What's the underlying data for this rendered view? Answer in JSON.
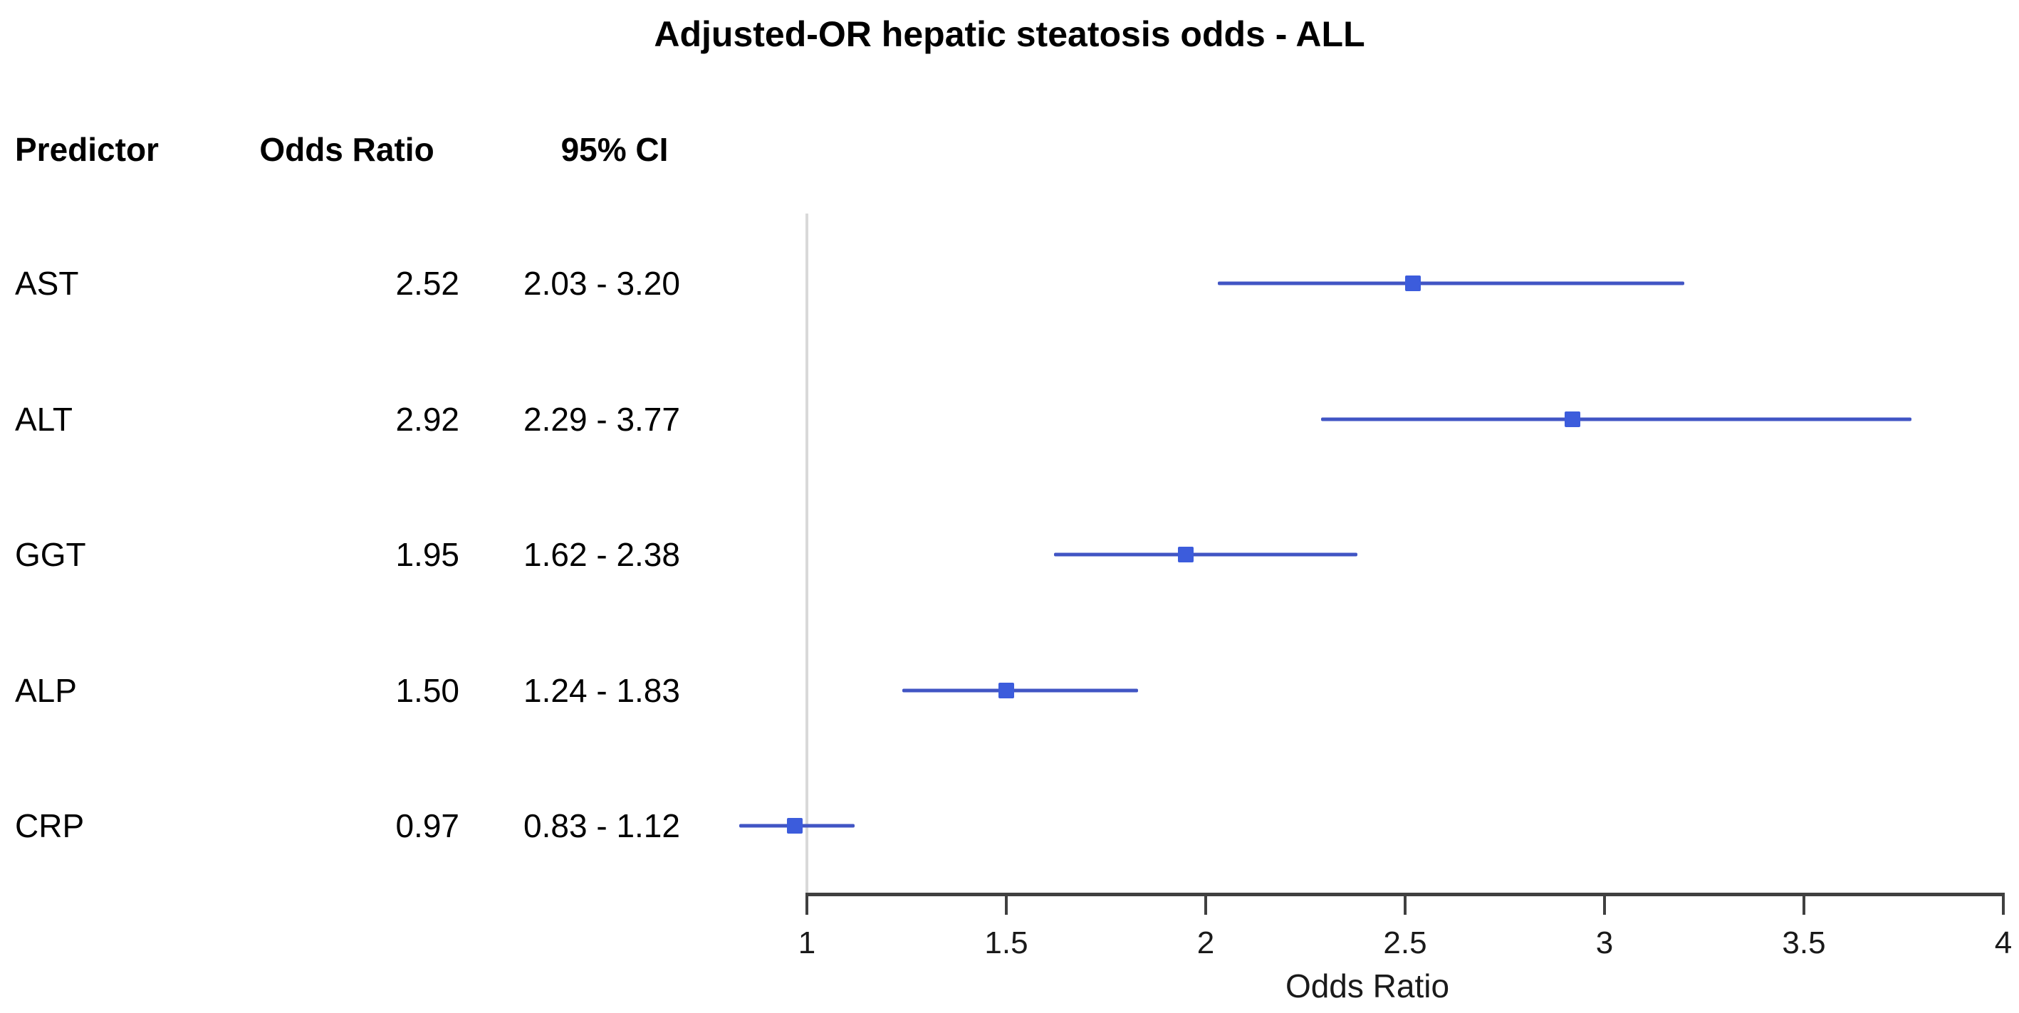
{
  "chart_data": {
    "type": "scatter",
    "variant": "forest-plot",
    "title": "Adjusted-OR hepatic steatosis odds - ALL",
    "xlabel": "Odds Ratio",
    "xlim": [
      1,
      4
    ],
    "x_ticks": [
      {
        "value": 1,
        "label": "1"
      },
      {
        "value": 1.5,
        "label": "1.5"
      },
      {
        "value": 2,
        "label": "2"
      },
      {
        "value": 2.5,
        "label": "2.5"
      },
      {
        "value": 3,
        "label": "3"
      },
      {
        "value": 3.5,
        "label": "3.5"
      },
      {
        "value": 4,
        "label": "4"
      }
    ],
    "reference_line": 1,
    "grid": false,
    "legend": false,
    "columns": [
      "Predictor",
      "Odds Ratio",
      "95% CI"
    ],
    "rows": [
      {
        "predictor": "AST",
        "or": 2.52,
        "or_text": "2.52",
        "ci_low": 2.03,
        "ci_high": 3.2,
        "ci_text": "2.03 - 3.20"
      },
      {
        "predictor": "ALT",
        "or": 2.92,
        "or_text": "2.92",
        "ci_low": 2.29,
        "ci_high": 3.77,
        "ci_text": "2.29 - 3.77"
      },
      {
        "predictor": "GGT",
        "or": 1.95,
        "or_text": "1.95",
        "ci_low": 1.62,
        "ci_high": 2.38,
        "ci_text": "1.62 - 2.38"
      },
      {
        "predictor": "ALP",
        "or": 1.5,
        "or_text": "1.50",
        "ci_low": 1.24,
        "ci_high": 1.83,
        "ci_text": "1.24 - 1.83"
      },
      {
        "predictor": "CRP",
        "or": 0.97,
        "or_text": "0.97",
        "ci_low": 0.83,
        "ci_high": 1.12,
        "ci_text": "0.83 - 1.12"
      }
    ],
    "colors": {
      "ci_line": "#4155c4",
      "marker": "#3c5cdc",
      "axis": "#404040",
      "reference_line": "#d9d9d9",
      "text": "#000000"
    }
  }
}
